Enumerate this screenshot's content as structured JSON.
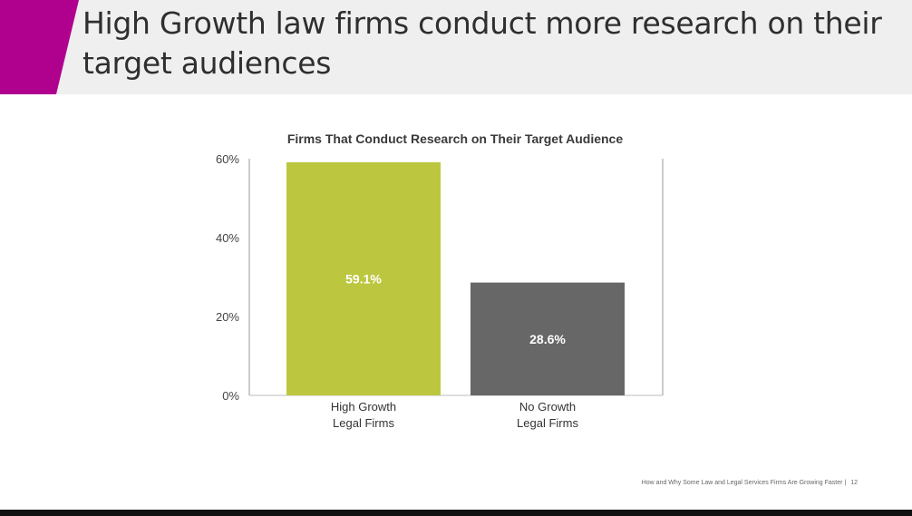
{
  "slide": {
    "title": "High Growth law firms conduct more research on their target audiences",
    "accent_color": "#b0008e",
    "footer": {
      "text": "How and Why Some Law and Legal Services Firms Are Growing Faster",
      "separator": "|",
      "page_number": "12"
    }
  },
  "chart_data": {
    "type": "bar",
    "title": "Firms That Conduct Research on Their Target Audience",
    "categories": [
      [
        "High Growth",
        "Legal Firms"
      ],
      [
        "No Growth",
        "Legal Firms"
      ]
    ],
    "values": [
      59.1,
      28.6
    ],
    "data_labels": [
      "59.1%",
      "28.6%"
    ],
    "colors": [
      "#bcc73f",
      "#676767"
    ],
    "ylim": [
      0,
      60
    ],
    "yticks": [
      0,
      20,
      40,
      60
    ],
    "ytick_labels": [
      "0%",
      "20%",
      "40%",
      "60%"
    ],
    "xlabel": "",
    "ylabel": "",
    "grid": false,
    "legend": "none"
  }
}
